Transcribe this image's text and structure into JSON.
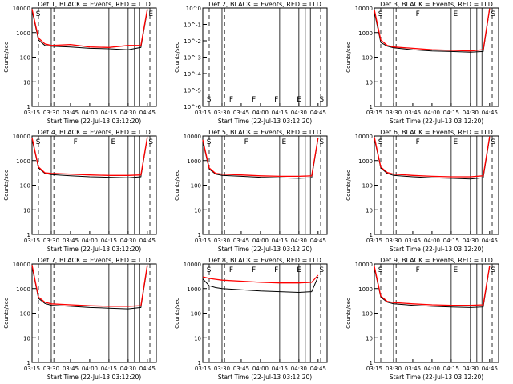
{
  "figure": {
    "x_label": "Start Time (22-Jul-13 03:12:20)",
    "y_label": "Counts/sec",
    "x_ticks": [
      "03:15",
      "03:30",
      "03:45",
      "04:00",
      "04:15",
      "04:30",
      "04:45"
    ],
    "y_ticks": [
      "1",
      "10",
      "100",
      "1000",
      "10000"
    ],
    "y_ticks_det2": [
      "10^0",
      "10^-1",
      "10^-2",
      "10^-3",
      "10^-4",
      "10^-5",
      "10^-6"
    ],
    "colors": {
      "events": "#000000",
      "lld": "#ff0000"
    }
  },
  "chart_data": [
    {
      "type": "line",
      "title": "Det 1, BLACK = Events, RED = LLD",
      "ylabel": "Counts/sec",
      "xlabel": "Start Time (22-Jul-13 03:12:20)",
      "yscale": "log",
      "ylim": [
        1,
        10000
      ],
      "x": [
        "03:15",
        "03:20",
        "03:25",
        "03:30",
        "03:45",
        "04:00",
        "04:15",
        "04:30",
        "04:40",
        "04:45"
      ],
      "series": [
        {
          "name": "Events",
          "values": [
            8000,
            500,
            300,
            280,
            260,
            230,
            220,
            200,
            250,
            8000
          ]
        },
        {
          "name": "LLD",
          "values": [
            9000,
            600,
            350,
            300,
            330,
            260,
            250,
            300,
            300,
            9000
          ]
        }
      ],
      "region_labels": [
        "S",
        "E"
      ]
    },
    {
      "type": "line",
      "title": "Det 2, BLACK = Events, RED = LLD",
      "ylabel": "Counts/sec",
      "xlabel": "Start Time (22-Jul-13 03:12:20)",
      "yscale": "log",
      "ylim": [
        1e-06,
        1
      ],
      "x": [],
      "series": [],
      "region_labels": [
        "S",
        "F",
        "F",
        "F",
        "E",
        "S"
      ]
    },
    {
      "type": "line",
      "title": "Det 3, BLACK = Events, RED = LLD",
      "ylabel": "Counts/sec",
      "xlabel": "Start Time (22-Jul-13 03:12:20)",
      "yscale": "log",
      "ylim": [
        1,
        10000
      ],
      "x": [
        "03:15",
        "03:20",
        "03:25",
        "03:30",
        "03:45",
        "04:00",
        "04:15",
        "04:30",
        "04:40",
        "04:45"
      ],
      "series": [
        {
          "name": "Events",
          "values": [
            7000,
            400,
            280,
            240,
            200,
            180,
            170,
            160,
            170,
            9000
          ]
        },
        {
          "name": "LLD",
          "values": [
            8500,
            500,
            300,
            260,
            230,
            200,
            190,
            180,
            200,
            9500
          ]
        }
      ],
      "region_labels": [
        "S",
        "F",
        "E",
        "S"
      ]
    },
    {
      "type": "line",
      "title": "Det 4, BLACK = Events, RED = LLD",
      "ylabel": "Counts/sec",
      "xlabel": "Start Time (22-Jul-13 03:12:20)",
      "yscale": "log",
      "ylim": [
        1,
        10000
      ],
      "x": [
        "03:15",
        "03:20",
        "03:25",
        "03:30",
        "03:45",
        "04:00",
        "04:15",
        "04:30",
        "04:40",
        "04:45"
      ],
      "series": [
        {
          "name": "Events",
          "values": [
            7500,
            500,
            300,
            270,
            240,
            220,
            210,
            200,
            220,
            8500
          ]
        },
        {
          "name": "LLD",
          "values": [
            8500,
            550,
            320,
            300,
            280,
            260,
            250,
            250,
            260,
            9000
          ]
        }
      ],
      "region_labels": [
        "S",
        "F",
        "E",
        "S"
      ]
    },
    {
      "type": "line",
      "title": "Det 5, BLACK = Events, RED = LLD",
      "ylabel": "Counts/sec",
      "xlabel": "Start Time (22-Jul-13 03:12:20)",
      "yscale": "log",
      "ylim": [
        1,
        10000
      ],
      "x": [
        "03:15",
        "03:20",
        "03:25",
        "03:30",
        "03:45",
        "04:00",
        "04:15",
        "04:30",
        "04:40",
        "04:45"
      ],
      "series": [
        {
          "name": "Events",
          "values": [
            6000,
            450,
            280,
            250,
            230,
            210,
            200,
            190,
            200,
            8000
          ]
        },
        {
          "name": "LLD",
          "values": [
            7000,
            500,
            300,
            280,
            260,
            240,
            230,
            230,
            240,
            8500
          ]
        }
      ],
      "region_labels": [
        "S",
        "F",
        "E",
        "S"
      ]
    },
    {
      "type": "line",
      "title": "Det 6, BLACK = Events, RED = LLD",
      "ylabel": "Counts/sec",
      "xlabel": "Start Time (22-Jul-13 03:12:20)",
      "yscale": "log",
      "ylim": [
        1,
        10000
      ],
      "x": [
        "03:15",
        "03:20",
        "03:25",
        "03:30",
        "03:45",
        "04:00",
        "04:15",
        "04:30",
        "04:40",
        "04:45"
      ],
      "series": [
        {
          "name": "Events",
          "values": [
            8000,
            500,
            300,
            250,
            220,
            200,
            190,
            180,
            200,
            8500
          ]
        },
        {
          "name": "LLD",
          "values": [
            9000,
            550,
            330,
            280,
            250,
            230,
            220,
            220,
            240,
            9500
          ]
        }
      ],
      "region_labels": [
        "S",
        "F",
        "E",
        "S"
      ]
    },
    {
      "type": "line",
      "title": "Det 7, BLACK = Events, RED = LLD",
      "ylabel": "Counts/sec",
      "xlabel": "Start Time (22-Jul-13 03:12:20)",
      "yscale": "log",
      "ylim": [
        1,
        10000
      ],
      "x": [
        "03:15",
        "03:20",
        "03:25",
        "03:30",
        "03:45",
        "04:00",
        "04:15",
        "04:30",
        "04:40",
        "04:45"
      ],
      "series": [
        {
          "name": "Events",
          "values": [
            8000,
            400,
            250,
            210,
            190,
            170,
            160,
            150,
            170,
            8000
          ]
        },
        {
          "name": "LLD",
          "values": [
            9000,
            450,
            280,
            240,
            220,
            200,
            190,
            190,
            200,
            9000
          ]
        }
      ],
      "region_labels": []
    },
    {
      "type": "line",
      "title": "Det 8, BLACK = Events, RED = LLD",
      "ylabel": "Counts/sec",
      "xlabel": "Start Time (22-Jul-13 03:12:20)",
      "yscale": "log",
      "ylim": [
        1,
        10000
      ],
      "x": [
        "03:15",
        "03:20",
        "03:25",
        "03:30",
        "03:45",
        "04:00",
        "04:15",
        "04:30",
        "04:40",
        "04:45"
      ],
      "series": [
        {
          "name": "Events",
          "values": [
            2500,
            1300,
            1100,
            1000,
            900,
            800,
            750,
            700,
            750,
            3000
          ]
        },
        {
          "name": "LLD",
          "values": [
            3000,
            2600,
            2400,
            2200,
            2000,
            1800,
            1700,
            1700,
            1800,
            3500
          ]
        }
      ],
      "region_labels": [
        "S",
        "F",
        "F",
        "F",
        "E",
        "S"
      ]
    },
    {
      "type": "line",
      "title": "Det 9, BLACK = Events, RED = LLD",
      "ylabel": "Counts/sec",
      "xlabel": "Start Time (22-Jul-13 03:12:20)",
      "yscale": "log",
      "ylim": [
        1,
        10000
      ],
      "x": [
        "03:15",
        "03:20",
        "03:25",
        "03:30",
        "03:45",
        "04:00",
        "04:15",
        "04:30",
        "04:40",
        "04:45"
      ],
      "series": [
        {
          "name": "Events",
          "values": [
            7000,
            450,
            280,
            240,
            210,
            190,
            180,
            170,
            180,
            8000
          ]
        },
        {
          "name": "LLD",
          "values": [
            8000,
            500,
            300,
            270,
            240,
            220,
            210,
            210,
            220,
            8500
          ]
        }
      ],
      "region_labels": [
        "S",
        "F",
        "E",
        "S"
      ]
    }
  ]
}
